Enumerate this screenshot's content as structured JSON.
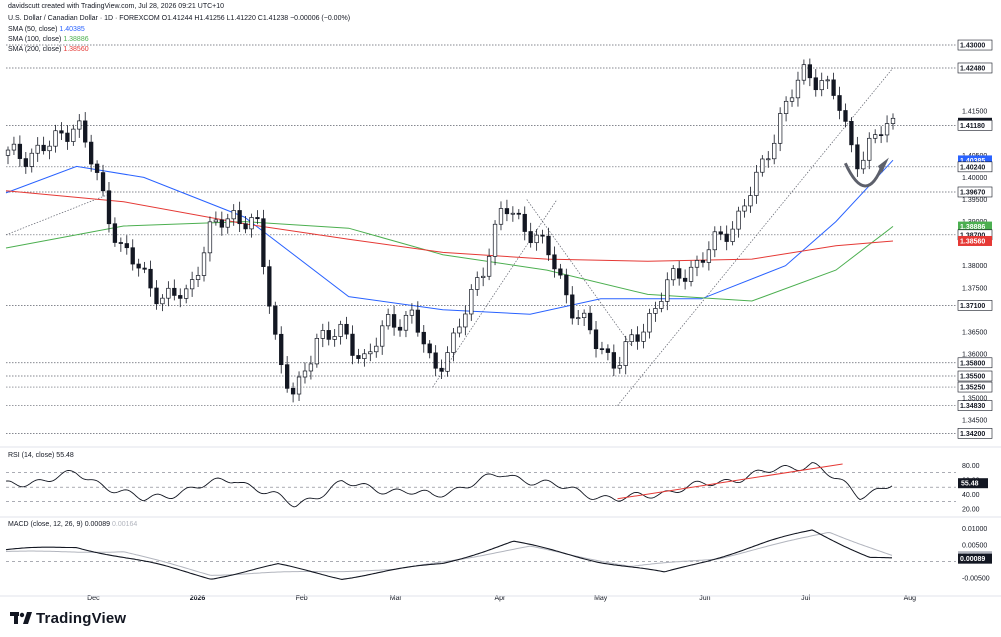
{
  "header": {
    "line1": "davidscutt created with TradingView.com, Jul 28, 2026 09:21 UTC+10",
    "line2": "U.S. Dollar / Canadian Dollar · 1D · FOREXCOM  O1.41244  H1.41256  L1.41220  C1.41238  −0.00006 (−0.00%)",
    "sma50_label": "SMA (50, close)",
    "sma50_value": "1.40385",
    "sma100_label": "SMA (100, close)",
    "sma100_value": "1.38886",
    "sma200_label": "SMA (200, close)",
    "sma200_value": "1.38560",
    "rsi_label": "RSI (14, close)",
    "rsi_value": "55.48",
    "macd_label": "MACD (close, 12, 26, 9)",
    "macd_value": "0.00089",
    "signal_value": "0.00164"
  },
  "brand": "TradingView",
  "colors": {
    "sma50": "#2962ff",
    "sma100": "#4caf50",
    "sma200": "#e53935",
    "candle": "#131722",
    "rsi_trend": "#e53935",
    "macd_line": "#131722",
    "signal_line": "#b2b5be",
    "price_box": "#131722",
    "sma50_box": "#2962ff",
    "sma100_box": "#4caf50",
    "sma200_box": "#e53935"
  },
  "chart_data": [
    {
      "type": "candlestick",
      "title": "U.S. Dollar / Canadian Dollar",
      "x_tick_labels": [
        "Dec",
        "2026",
        "Feb",
        "Mar",
        "Apr",
        "May",
        "Jun",
        "Jul",
        "Aug"
      ],
      "y_tick_labels": [
        "1.43000",
        "1.42480",
        "1.41500",
        "1.41238",
        "1.41180",
        "1.40500",
        "1.40385",
        "1.40240",
        "1.40000",
        "1.39670",
        "1.39500",
        "1.39000",
        "1.38886",
        "1.38700",
        "1.38560",
        "1.38000",
        "1.37500",
        "1.37100",
        "1.36500",
        "1.36000",
        "1.35800",
        "1.35500",
        "1.35250",
        "1.35000",
        "1.34830",
        "1.34500",
        "1.34200"
      ],
      "ylim": [
        1.3405,
        1.4325
      ],
      "horizontal_levels": [
        1.43,
        1.4248,
        1.4118,
        1.4024,
        1.3967,
        1.387,
        1.371,
        1.358,
        1.355,
        1.3525,
        1.3483,
        1.342
      ],
      "highlighted_labels": [
        {
          "label": "1.41238",
          "role": "last price"
        },
        {
          "label": "1.40385",
          "role": "SMA 50"
        },
        {
          "label": "1.38886",
          "role": "SMA 100"
        },
        {
          "label": "1.38560",
          "role": "SMA 200"
        }
      ],
      "close_path": [
        [
          "2025-11-10",
          1.405
        ],
        [
          "2025-11-18",
          1.407
        ],
        [
          "2025-11-26",
          1.413
        ],
        [
          "2025-12-02",
          1.4
        ],
        [
          "2025-12-09",
          1.384
        ],
        [
          "2025-12-16",
          1.378
        ],
        [
          "2025-12-22",
          1.372
        ],
        [
          "2025-12-29",
          1.374
        ],
        [
          "2026-01-05",
          1.388
        ],
        [
          "2026-01-12",
          1.392
        ],
        [
          "2026-01-19",
          1.388
        ],
        [
          "2026-01-25",
          1.36
        ],
        [
          "2026-01-30",
          1.349
        ],
        [
          "2026-02-06",
          1.365
        ],
        [
          "2026-02-13",
          1.364
        ],
        [
          "2026-02-20",
          1.359
        ],
        [
          "2026-02-27",
          1.367
        ],
        [
          "2026-03-06",
          1.369
        ],
        [
          "2026-03-12",
          1.356
        ],
        [
          "2026-03-19",
          1.364
        ],
        [
          "2026-03-26",
          1.378
        ],
        [
          "2026-04-02",
          1.393
        ],
        [
          "2026-04-09",
          1.389
        ],
        [
          "2026-04-16",
          1.382
        ],
        [
          "2026-04-23",
          1.37
        ],
        [
          "2026-04-30",
          1.362
        ],
        [
          "2026-05-06",
          1.358
        ],
        [
          "2026-05-13",
          1.365
        ],
        [
          "2026-05-20",
          1.375
        ],
        [
          "2026-05-27",
          1.379
        ],
        [
          "2026-06-03",
          1.384
        ],
        [
          "2026-06-10",
          1.39
        ],
        [
          "2026-06-17",
          1.4
        ],
        [
          "2026-06-24",
          1.415
        ],
        [
          "2026-07-01",
          1.424
        ],
        [
          "2026-07-06",
          1.422
        ],
        [
          "2026-07-10",
          1.418
        ],
        [
          "2026-07-14",
          1.408
        ],
        [
          "2026-07-17",
          1.404
        ],
        [
          "2026-07-20",
          1.407
        ],
        [
          "2026-07-23",
          1.41
        ],
        [
          "2026-07-27",
          1.4124
        ]
      ],
      "series": [
        {
          "name": "SMA (50, close)",
          "points": [
            [
              "2025-11-05",
              1.3965
            ],
            [
              "2025-11-26",
              1.4025
            ],
            [
              "2025-12-16",
              1.4
            ],
            [
              "2026-01-15",
              1.391
            ],
            [
              "2026-02-15",
              1.373
            ],
            [
              "2026-03-15",
              1.37
            ],
            [
              "2026-04-10",
              1.369
            ],
            [
              "2026-05-01",
              1.3725
            ],
            [
              "2026-05-31",
              1.3725
            ],
            [
              "2026-06-25",
              1.38
            ],
            [
              "2026-07-10",
              1.39
            ],
            [
              "2026-07-27",
              1.4039
            ]
          ]
        },
        {
          "name": "SMA (100, close)",
          "points": [
            [
              "2025-11-05",
              1.384
            ],
            [
              "2025-12-10",
              1.389
            ],
            [
              "2026-01-15",
              1.39
            ],
            [
              "2026-02-15",
              1.3885
            ],
            [
              "2026-03-15",
              1.3825
            ],
            [
              "2026-04-15",
              1.379
            ],
            [
              "2026-05-15",
              1.3735
            ],
            [
              "2026-06-15",
              1.372
            ],
            [
              "2026-07-10",
              1.379
            ],
            [
              "2026-07-27",
              1.3889
            ]
          ]
        },
        {
          "name": "SMA (200, close)",
          "points": [
            [
              "2025-11-05",
              1.397
            ],
            [
              "2025-12-10",
              1.3945
            ],
            [
              "2026-01-15",
              1.3895
            ],
            [
              "2026-02-15",
              1.386
            ],
            [
              "2026-03-15",
              1.383
            ],
            [
              "2026-04-15",
              1.3815
            ],
            [
              "2026-05-15",
              1.381
            ],
            [
              "2026-06-15",
              1.3815
            ],
            [
              "2026-07-10",
              1.3845
            ],
            [
              "2026-07-27",
              1.3856
            ]
          ]
        }
      ]
    },
    {
      "type": "line",
      "title": "RSI (14, close)",
      "y_tick_labels": [
        "80.00",
        "60.00",
        "55.48",
        "40.00",
        "20.00"
      ],
      "ylim": [
        13,
        93
      ],
      "reference_levels": [
        70,
        50,
        30
      ],
      "series": [
        {
          "name": "RSI (14, close)",
          "points": [
            [
              "2025-11-05",
              52
            ],
            [
              "2025-11-26",
              68
            ],
            [
              "2025-12-16",
              32
            ],
            [
              "2026-01-12",
              62
            ],
            [
              "2026-01-30",
              25
            ],
            [
              "2026-02-13",
              55
            ],
            [
              "2026-03-12",
              38
            ],
            [
              "2026-04-02",
              68
            ],
            [
              "2026-05-06",
              32
            ],
            [
              "2026-06-03",
              55
            ],
            [
              "2026-06-24",
              75
            ],
            [
              "2026-07-03",
              83
            ],
            [
              "2026-07-17",
              38
            ],
            [
              "2026-07-27",
              55.48
            ]
          ]
        }
      ]
    },
    {
      "type": "line",
      "title": "MACD (close, 12, 26, 9)",
      "y_tick_labels": [
        "0.01000",
        "0.00500",
        "0.00164",
        "0.00089",
        "-0.00500"
      ],
      "ylim": [
        -0.008,
        0.012
      ],
      "series": [
        {
          "name": "MACD",
          "points": [
            [
              "2025-11-05",
              0.0035
            ],
            [
              "2025-11-26",
              0.0045
            ],
            [
              "2025-12-20",
              -0.001
            ],
            [
              "2026-01-05",
              -0.005
            ],
            [
              "2026-01-25",
              -0.001
            ],
            [
              "2026-02-13",
              -0.005
            ],
            [
              "2026-03-15",
              -0.0005
            ],
            [
              "2026-04-05",
              0.006
            ],
            [
              "2026-05-01",
              0.0
            ],
            [
              "2026-05-20",
              -0.0035
            ],
            [
              "2026-06-20",
              0.006
            ],
            [
              "2026-07-03",
              0.0095
            ],
            [
              "2026-07-20",
              0.0015
            ],
            [
              "2026-07-27",
              0.00089
            ]
          ]
        },
        {
          "name": "Signal",
          "points": [
            [
              "2025-11-05",
              0.003
            ],
            [
              "2025-12-10",
              0.003
            ],
            [
              "2026-01-05",
              -0.004
            ],
            [
              "2026-02-05",
              -0.003
            ],
            [
              "2026-03-01",
              -0.0025
            ],
            [
              "2026-04-10",
              0.0045
            ],
            [
              "2026-05-10",
              -0.0015
            ],
            [
              "2026-06-05",
              0.001
            ],
            [
              "2026-07-08",
              0.009
            ],
            [
              "2026-07-27",
              0.00164
            ]
          ]
        }
      ]
    }
  ]
}
